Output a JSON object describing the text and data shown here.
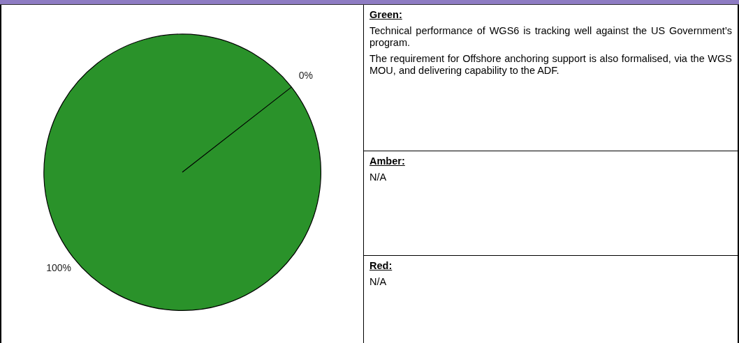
{
  "chart_data": {
    "type": "pie",
    "categories": [
      null,
      null
    ],
    "values": [
      0,
      100
    ],
    "colors": [
      "#e0a020",
      "#2a922a"
    ],
    "value_labels": [
      "0%",
      "100%"
    ],
    "annotations": [
      "Green:",
      "Technical performance of WGS6 is tracking well against the US Government’s program.",
      "The requirement for Offshore anchoring support is also formalised, via the WGS MOU, and delivering capability to the ADF.",
      "Amber:",
      "N/A",
      "Red:",
      "N/A"
    ]
  }
}
